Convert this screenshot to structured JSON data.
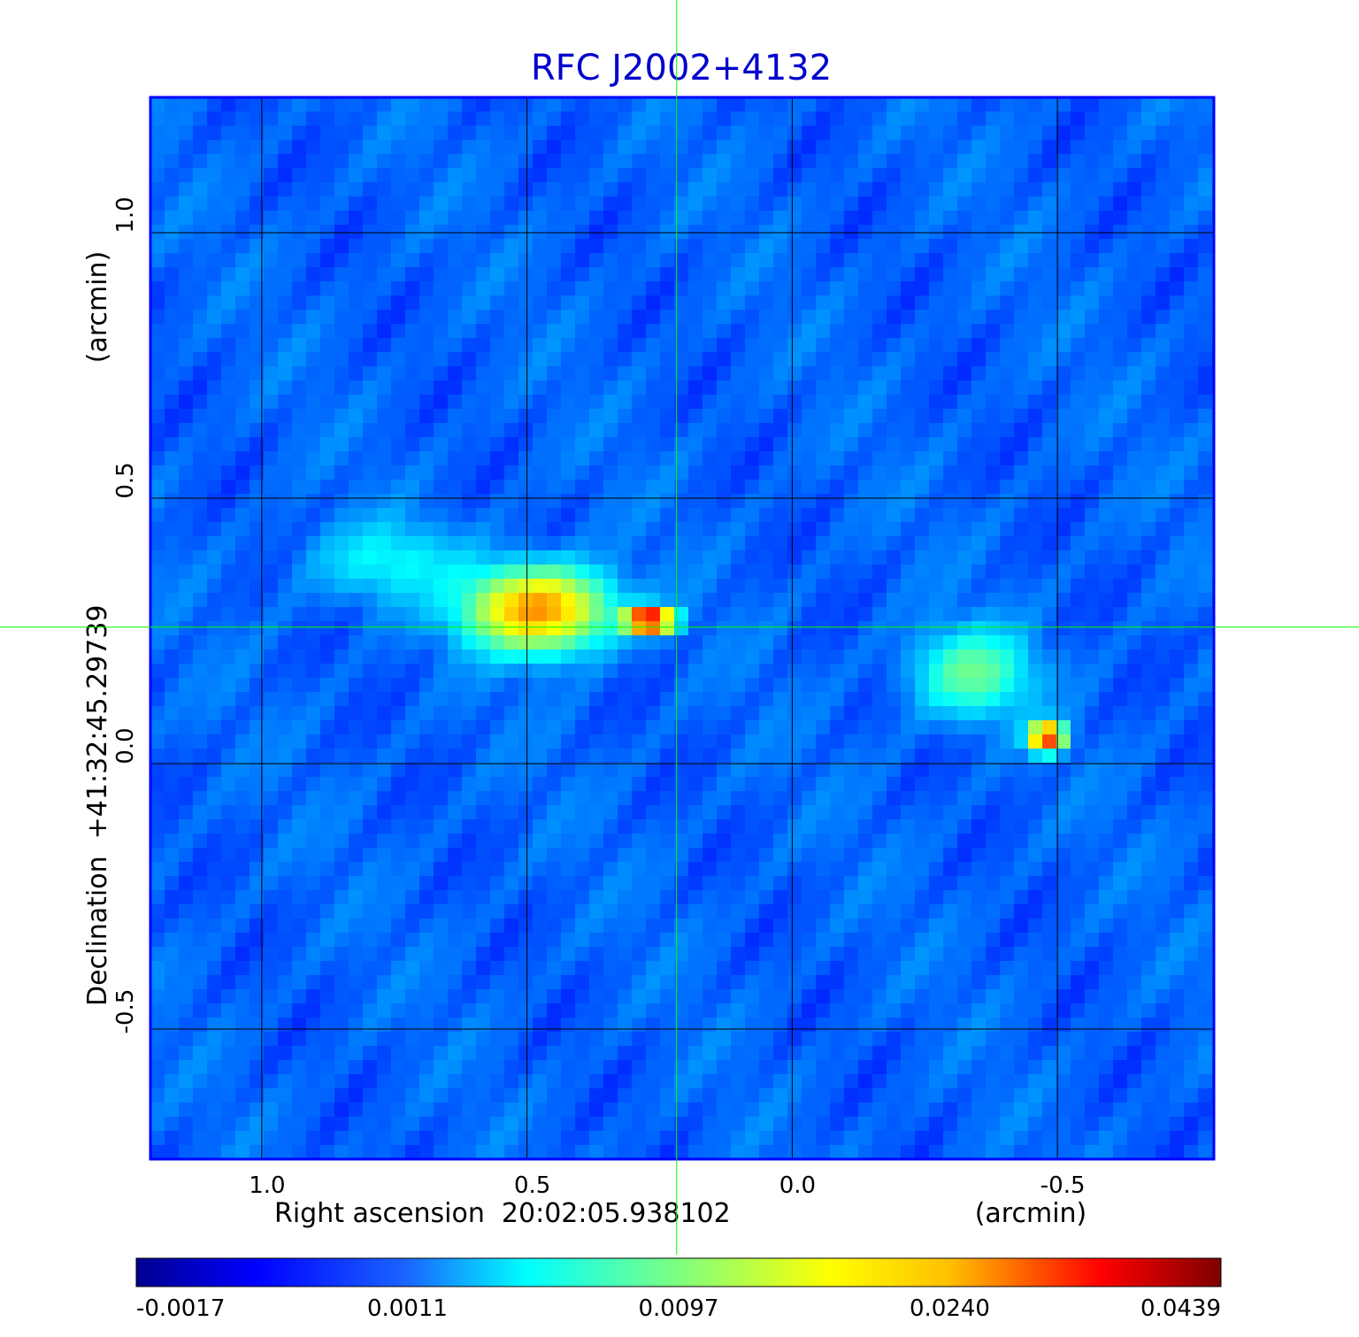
{
  "chart_data": {
    "type": "heatmap",
    "title": "RFC J2002+4132",
    "xlabel": "Right ascension  20:02:05.938102",
    "xunit": "(arcmin)",
    "ylabel": "Declination  +41:32:45.29739",
    "yunit": "(arcmin)",
    "x_ticks": [
      1.0,
      0.5,
      0.0,
      -0.5
    ],
    "x_tick_labels": [
      "1.0",
      "0.5",
      "0.0",
      "-0.5"
    ],
    "y_ticks": [
      1.0,
      0.5,
      0.0,
      -0.5
    ],
    "y_tick_labels": [
      "1.0",
      "0.5",
      "0.0",
      "-0.5"
    ],
    "xlim": [
      1.21,
      -0.795
    ],
    "ylim": [
      -0.745,
      1.255
    ],
    "grid": true,
    "crosshair": {
      "x": 0.218,
      "y": 0.257
    },
    "colormap": "jet",
    "colorbar": {
      "orientation": "horizontal",
      "tick_labels": [
        "-0.0017",
        "0.0011",
        "0.0097",
        "0.0240",
        "0.0439"
      ],
      "range": [
        -0.0017,
        0.0439
      ],
      "scale": "nonlinear"
    },
    "sources": [
      {
        "name": "",
        "x": 0.48,
        "y": 0.29,
        "peak": 0.022,
        "extent_x": 0.24,
        "extent_y": 0.14
      },
      {
        "name": "",
        "x": 0.27,
        "y": 0.27,
        "peak": 0.042,
        "extent_x": 0.08,
        "extent_y": 0.04
      },
      {
        "name": "",
        "x": -0.48,
        "y": 0.05,
        "peak": 0.03,
        "extent_x": 0.06,
        "extent_y": 0.05
      },
      {
        "name": "",
        "x": -0.34,
        "y": 0.17,
        "peak": 0.008,
        "extent_x": 0.2,
        "extent_y": 0.15
      },
      {
        "name": "",
        "x": 0.76,
        "y": 0.38,
        "peak": 0.004,
        "extent_x": 0.28,
        "extent_y": 0.14
      }
    ]
  },
  "colors": {
    "title": "#0000cc",
    "frame": "#0000ff",
    "grid": "#000000",
    "crosshair": "#00ff00",
    "text": "#000000"
  }
}
